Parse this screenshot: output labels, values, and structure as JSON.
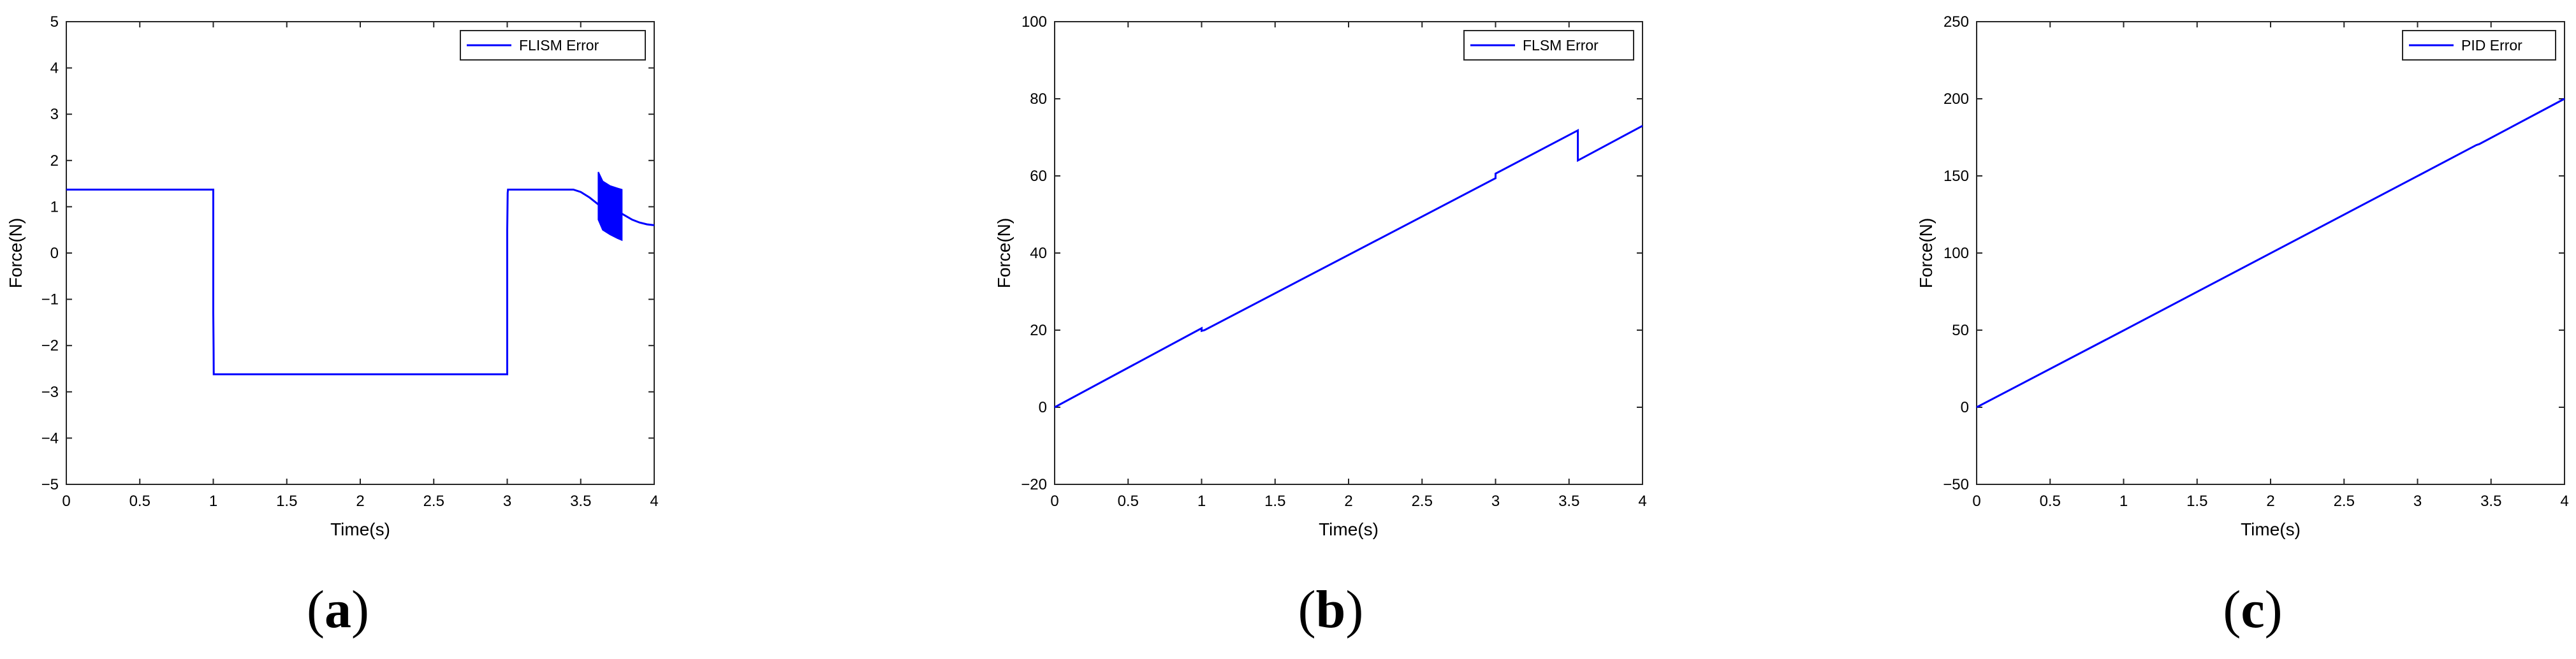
{
  "chart_data": [
    {
      "type": "line",
      "panel_label": "a",
      "xlabel": "Time(s)",
      "ylabel": "Force(N)",
      "xlim": [
        0,
        4
      ],
      "ylim": [
        -5,
        5
      ],
      "xticks": [
        0,
        0.5,
        1,
        1.5,
        2,
        2.5,
        3,
        3.5,
        4
      ],
      "xtick_labels": [
        "0",
        "0.5",
        "1",
        "1.5",
        "2",
        "2.5",
        "3",
        "3.5",
        "4"
      ],
      "yticks": [
        -5,
        -4,
        -3,
        -2,
        -1,
        0,
        1,
        2,
        3,
        4,
        5
      ],
      "ytick_labels": [
        "−5",
        "−4",
        "−3",
        "−2",
        "−1",
        "0",
        "1",
        "2",
        "3",
        "4",
        "5"
      ],
      "grid": false,
      "legend_position": "top-right",
      "series": [
        {
          "name": "FLISM Error",
          "color": "#0000ff",
          "x": [
            0,
            1.0,
            1.0,
            1.002,
            1.003,
            1.01,
            2.5,
            3.0,
            3.0,
            3.003,
            3.005,
            3.2,
            3.45,
            3.5,
            3.56,
            3.62
          ],
          "y": [
            1.37,
            1.37,
            -1.3,
            -2.1,
            -2.62,
            -2.62,
            -2.62,
            -2.62,
            0.5,
            1.3,
            1.37,
            1.37,
            1.37,
            1.32,
            1.2,
            1.05
          ],
          "oscillation_band": {
            "x": [
              3.62,
              3.65,
              3.7,
              3.75,
              3.78
            ],
            "upper": [
              1.75,
              1.55,
              1.45,
              1.4,
              1.37
            ],
            "lower": [
              0.72,
              0.5,
              0.4,
              0.32,
              0.28
            ]
          },
          "tail": {
            "x": [
              3.78,
              3.85,
              3.9,
              3.95,
              4.0
            ],
            "y": [
              0.85,
              0.72,
              0.66,
              0.62,
              0.6
            ]
          }
        }
      ]
    },
    {
      "type": "line",
      "panel_label": "b",
      "xlabel": "Time(s)",
      "ylabel": "Force(N)",
      "xlim": [
        0,
        4
      ],
      "ylim": [
        -20,
        100
      ],
      "xticks": [
        0,
        0.5,
        1,
        1.5,
        2,
        2.5,
        3,
        3.5,
        4
      ],
      "xtick_labels": [
        "0",
        "0.5",
        "1",
        "1.5",
        "2",
        "2.5",
        "3",
        "3.5",
        "4"
      ],
      "yticks": [
        -20,
        0,
        20,
        40,
        60,
        80,
        100
      ],
      "ytick_labels": [
        "−20",
        "0",
        "20",
        "40",
        "60",
        "80",
        "100"
      ],
      "grid": false,
      "legend_position": "top-right",
      "series": [
        {
          "name": "FLSM Error",
          "color": "#0000ff",
          "x": [
            0,
            1.0,
            1.0,
            1.02,
            3.0,
            3.0,
            3.56,
            3.56,
            4.0
          ],
          "y": [
            0,
            20.5,
            19.8,
            20.0,
            59.4,
            60.6,
            71.8,
            64.0,
            73.0
          ]
        }
      ]
    },
    {
      "type": "line",
      "panel_label": "c",
      "xlabel": "Time(s)",
      "ylabel": "Force(N)",
      "xlim": [
        0,
        4
      ],
      "ylim": [
        -50,
        250
      ],
      "xticks": [
        0,
        0.5,
        1,
        1.5,
        2,
        2.5,
        3,
        3.5,
        4
      ],
      "xtick_labels": [
        "0",
        "0.5",
        "1",
        "1.5",
        "2",
        "2.5",
        "3",
        "3.5",
        "4"
      ],
      "yticks": [
        -50,
        0,
        50,
        100,
        150,
        200,
        250
      ],
      "ytick_labels": [
        "−50",
        "0",
        "50",
        "100",
        "150",
        "200",
        "250"
      ],
      "grid": false,
      "legend_position": "top-right",
      "series": [
        {
          "name": "PID Error",
          "color": "#0000ff",
          "x": [
            0,
            1.0,
            1.01,
            3.0,
            3.01,
            3.4,
            3.42,
            4.0
          ],
          "y": [
            0,
            49.8,
            50.3,
            149.9,
            150.4,
            170.0,
            170.6,
            200.0
          ]
        }
      ]
    }
  ]
}
